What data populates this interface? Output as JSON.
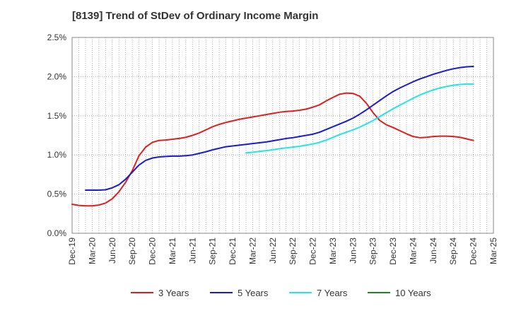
{
  "chart_data": {
    "type": "line",
    "title": "[8139]  Trend of StDev of Ordinary Income Margin",
    "xlabel": "",
    "ylabel": "",
    "x_ticks": [
      "Dec-19",
      "Mar-20",
      "Jun-20",
      "Sep-20",
      "Dec-20",
      "Mar-21",
      "Jun-21",
      "Sep-21",
      "Dec-21",
      "Mar-22",
      "Jun-22",
      "Sep-22",
      "Dec-22",
      "Mar-23",
      "Jun-23",
      "Sep-23",
      "Dec-23",
      "Mar-24",
      "Jun-24",
      "Sep-24",
      "Dec-24",
      "Mar-25"
    ],
    "y_ticks": [
      "0.0%",
      "0.5%",
      "1.0%",
      "1.5%",
      "2.0%",
      "2.5%"
    ],
    "ylim": [
      0,
      2.5
    ],
    "y_unit": "%",
    "grid": "dotted vertical and horizontal",
    "legend_position": "bottom",
    "series": [
      {
        "name": "3 Years",
        "color": "#dd1f1f",
        "points": [
          [
            "Dec-19",
            0.37
          ],
          [
            "Jan-20",
            0.355
          ],
          [
            "Feb-20",
            0.35
          ],
          [
            "Mar-20",
            0.35
          ],
          [
            "Apr-20",
            0.36
          ],
          [
            "May-20",
            0.385
          ],
          [
            "Jun-20",
            0.44
          ],
          [
            "Jul-20",
            0.53
          ],
          [
            "Aug-20",
            0.65
          ],
          [
            "Sep-20",
            0.8
          ],
          [
            "Oct-20",
            0.99
          ],
          [
            "Nov-20",
            1.1
          ],
          [
            "Dec-20",
            1.16
          ],
          [
            "Jan-21",
            1.185
          ],
          [
            "Feb-21",
            1.19
          ],
          [
            "Mar-21",
            1.2
          ],
          [
            "Apr-21",
            1.21
          ],
          [
            "May-21",
            1.225
          ],
          [
            "Jun-21",
            1.25
          ],
          [
            "Jul-21",
            1.28
          ],
          [
            "Aug-21",
            1.32
          ],
          [
            "Sep-21",
            1.36
          ],
          [
            "Oct-21",
            1.39
          ],
          [
            "Nov-21",
            1.415
          ],
          [
            "Dec-21",
            1.435
          ],
          [
            "Jan-22",
            1.455
          ],
          [
            "Feb-22",
            1.47
          ],
          [
            "Mar-22",
            1.485
          ],
          [
            "Apr-22",
            1.5
          ],
          [
            "May-22",
            1.515
          ],
          [
            "Jun-22",
            1.53
          ],
          [
            "Jul-22",
            1.545
          ],
          [
            "Aug-22",
            1.555
          ],
          [
            "Sep-22",
            1.56
          ],
          [
            "Oct-22",
            1.57
          ],
          [
            "Nov-22",
            1.585
          ],
          [
            "Dec-22",
            1.61
          ],
          [
            "Jan-23",
            1.64
          ],
          [
            "Feb-23",
            1.69
          ],
          [
            "Mar-23",
            1.735
          ],
          [
            "Apr-23",
            1.775
          ],
          [
            "May-23",
            1.79
          ],
          [
            "Jun-23",
            1.785
          ],
          [
            "Jul-23",
            1.75
          ],
          [
            "Aug-23",
            1.66
          ],
          [
            "Sep-23",
            1.54
          ],
          [
            "Oct-23",
            1.44
          ],
          [
            "Nov-23",
            1.385
          ],
          [
            "Dec-23",
            1.35
          ],
          [
            "Jan-24",
            1.31
          ],
          [
            "Feb-24",
            1.27
          ],
          [
            "Mar-24",
            1.235
          ],
          [
            "Apr-24",
            1.22
          ],
          [
            "May-24",
            1.225
          ],
          [
            "Jun-24",
            1.235
          ],
          [
            "Jul-24",
            1.24
          ],
          [
            "Aug-24",
            1.24
          ],
          [
            "Sep-24",
            1.235
          ],
          [
            "Oct-24",
            1.225
          ],
          [
            "Nov-24",
            1.205
          ],
          [
            "Dec-24",
            1.185
          ]
        ]
      },
      {
        "name": "5 Years",
        "color": "#1a1ad2",
        "points": [
          [
            "Feb-20",
            0.55
          ],
          [
            "Mar-20",
            0.55
          ],
          [
            "Apr-20",
            0.55
          ],
          [
            "May-20",
            0.555
          ],
          [
            "Jun-20",
            0.58
          ],
          [
            "Jul-20",
            0.62
          ],
          [
            "Aug-20",
            0.69
          ],
          [
            "Sep-20",
            0.78
          ],
          [
            "Oct-20",
            0.87
          ],
          [
            "Nov-20",
            0.93
          ],
          [
            "Dec-20",
            0.96
          ],
          [
            "Jan-21",
            0.975
          ],
          [
            "Feb-21",
            0.98
          ],
          [
            "Mar-21",
            0.985
          ],
          [
            "Apr-21",
            0.985
          ],
          [
            "May-21",
            0.99
          ],
          [
            "Jun-21",
            1.0
          ],
          [
            "Jul-21",
            1.02
          ],
          [
            "Aug-21",
            1.04
          ],
          [
            "Sep-21",
            1.065
          ],
          [
            "Oct-21",
            1.085
          ],
          [
            "Nov-21",
            1.105
          ],
          [
            "Dec-21",
            1.115
          ],
          [
            "Jan-22",
            1.125
          ],
          [
            "Feb-22",
            1.135
          ],
          [
            "Mar-22",
            1.145
          ],
          [
            "Apr-22",
            1.155
          ],
          [
            "May-22",
            1.165
          ],
          [
            "Jun-22",
            1.18
          ],
          [
            "Jul-22",
            1.195
          ],
          [
            "Aug-22",
            1.21
          ],
          [
            "Sep-22",
            1.22
          ],
          [
            "Oct-22",
            1.235
          ],
          [
            "Nov-22",
            1.25
          ],
          [
            "Dec-22",
            1.265
          ],
          [
            "Jan-23",
            1.29
          ],
          [
            "Feb-23",
            1.325
          ],
          [
            "Mar-23",
            1.36
          ],
          [
            "Apr-23",
            1.395
          ],
          [
            "May-23",
            1.43
          ],
          [
            "Jun-23",
            1.47
          ],
          [
            "Jul-23",
            1.52
          ],
          [
            "Aug-23",
            1.575
          ],
          [
            "Sep-23",
            1.635
          ],
          [
            "Oct-23",
            1.695
          ],
          [
            "Nov-23",
            1.755
          ],
          [
            "Dec-23",
            1.81
          ],
          [
            "Jan-24",
            1.855
          ],
          [
            "Feb-24",
            1.895
          ],
          [
            "Mar-24",
            1.935
          ],
          [
            "Apr-24",
            1.97
          ],
          [
            "May-24",
            2.0
          ],
          [
            "Jun-24",
            2.03
          ],
          [
            "Jul-24",
            2.055
          ],
          [
            "Aug-24",
            2.08
          ],
          [
            "Sep-24",
            2.1
          ],
          [
            "Oct-24",
            2.115
          ],
          [
            "Nov-24",
            2.125
          ],
          [
            "Dec-24",
            2.13
          ]
        ]
      },
      {
        "name": "7 Years",
        "color": "#22e5e5",
        "points": [
          [
            "Feb-22",
            1.025
          ],
          [
            "Mar-22",
            1.035
          ],
          [
            "Apr-22",
            1.045
          ],
          [
            "May-22",
            1.055
          ],
          [
            "Jun-22",
            1.065
          ],
          [
            "Jul-22",
            1.08
          ],
          [
            "Aug-22",
            1.09
          ],
          [
            "Sep-22",
            1.1
          ],
          [
            "Oct-22",
            1.11
          ],
          [
            "Nov-22",
            1.125
          ],
          [
            "Dec-22",
            1.14
          ],
          [
            "Jan-23",
            1.16
          ],
          [
            "Feb-23",
            1.19
          ],
          [
            "Mar-23",
            1.225
          ],
          [
            "Apr-23",
            1.26
          ],
          [
            "May-23",
            1.29
          ],
          [
            "Jun-23",
            1.32
          ],
          [
            "Jul-23",
            1.355
          ],
          [
            "Aug-23",
            1.395
          ],
          [
            "Sep-23",
            1.44
          ],
          [
            "Oct-23",
            1.49
          ],
          [
            "Nov-23",
            1.54
          ],
          [
            "Dec-23",
            1.59
          ],
          [
            "Jan-24",
            1.635
          ],
          [
            "Feb-24",
            1.68
          ],
          [
            "Mar-24",
            1.725
          ],
          [
            "Apr-24",
            1.765
          ],
          [
            "May-24",
            1.8
          ],
          [
            "Jun-24",
            1.83
          ],
          [
            "Jul-24",
            1.855
          ],
          [
            "Aug-24",
            1.875
          ],
          [
            "Sep-24",
            1.89
          ],
          [
            "Oct-24",
            1.9
          ],
          [
            "Nov-24",
            1.905
          ],
          [
            "Dec-24",
            1.905
          ]
        ]
      },
      {
        "name": "10 Years",
        "color": "#1f8a1f",
        "points": []
      }
    ]
  }
}
